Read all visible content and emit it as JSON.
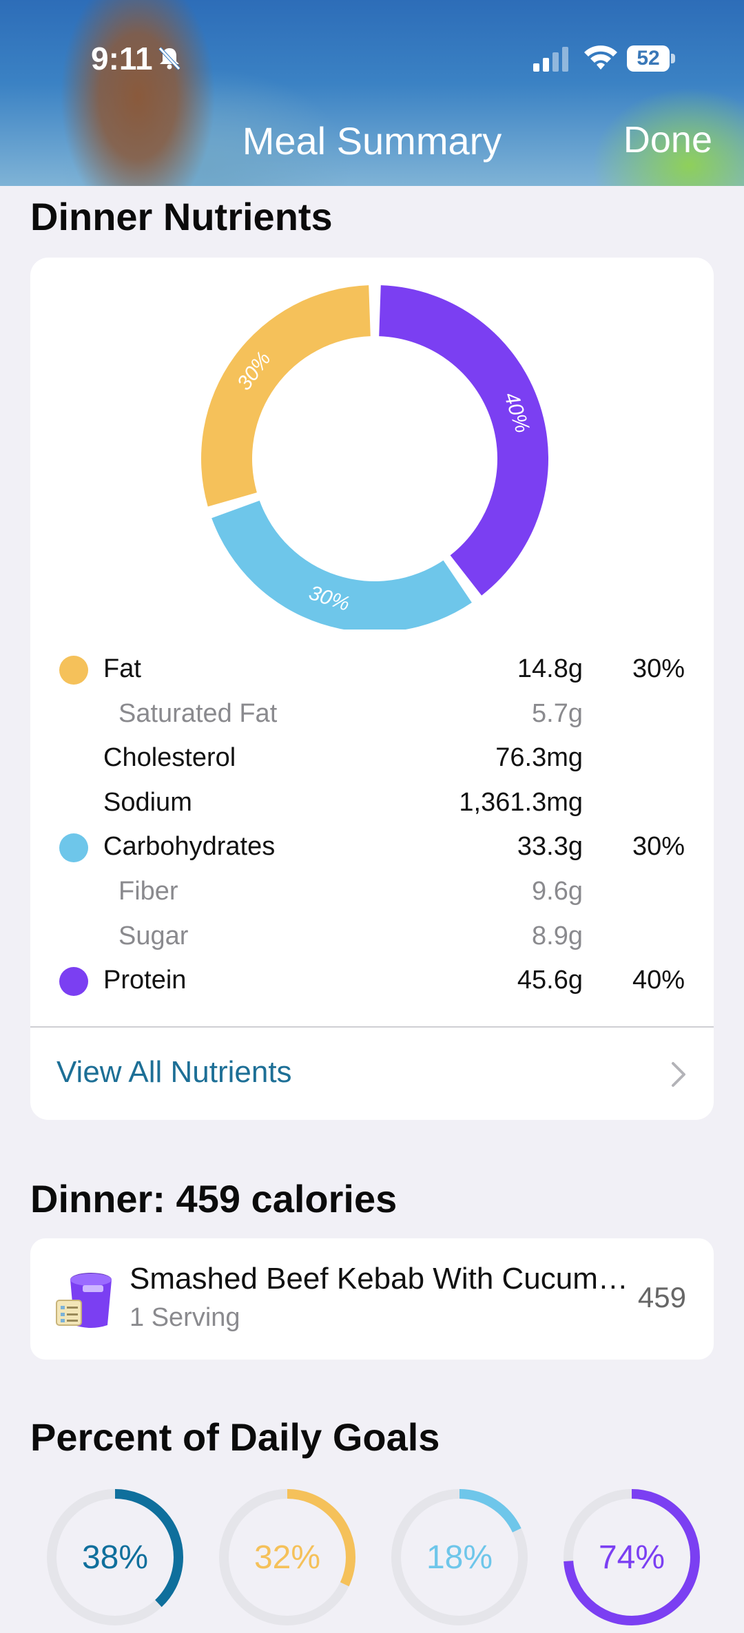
{
  "status_bar": {
    "time": "9:11",
    "battery": "52"
  },
  "nav": {
    "title": "Meal Summary",
    "done": "Done"
  },
  "nutrients_section": {
    "title": "Dinner Nutrients",
    "donut": [
      {
        "name": "Fat",
        "percent_label": "30%",
        "value": 30,
        "color": "#f5c15a"
      },
      {
        "name": "Carbohydrates",
        "percent_label": "30%",
        "value": 30,
        "color": "#6ec6ea"
      },
      {
        "name": "Protein",
        "percent_label": "40%",
        "value": 40,
        "color": "#7b3ff2"
      }
    ],
    "rows": [
      {
        "name": "Fat",
        "amount": "14.8g",
        "percent": "30%",
        "color": "#f5c15a",
        "sub": false
      },
      {
        "name": "Saturated Fat",
        "amount": "5.7g",
        "percent": "",
        "color": "",
        "sub": true
      },
      {
        "name": "Cholesterol",
        "amount": "76.3mg",
        "percent": "",
        "color": "",
        "sub": false
      },
      {
        "name": "Sodium",
        "amount": "1,361.3mg",
        "percent": "",
        "color": "",
        "sub": false
      },
      {
        "name": "Carbohydrates",
        "amount": "33.3g",
        "percent": "30%",
        "color": "#6ec6ea",
        "sub": false
      },
      {
        "name": "Fiber",
        "amount": "9.6g",
        "percent": "",
        "color": "",
        "sub": true
      },
      {
        "name": "Sugar",
        "amount": "8.9g",
        "percent": "",
        "color": "",
        "sub": true
      },
      {
        "name": "Protein",
        "amount": "45.6g",
        "percent": "40%",
        "color": "#7b3ff2",
        "sub": false
      }
    ],
    "view_all": "View All Nutrients"
  },
  "meal_section": {
    "title": "Dinner: 459 calories",
    "items": [
      {
        "name": "Smashed Beef Kebab With Cucum…",
        "serving": "1 Serving",
        "calories": "459"
      }
    ]
  },
  "goals_section": {
    "title": "Percent of Daily Goals",
    "goals": [
      {
        "label": "38%",
        "value": 0.38,
        "color": "#0f6f9c"
      },
      {
        "label": "32%",
        "value": 0.32,
        "color": "#f5c15a"
      },
      {
        "label": "18%",
        "value": 0.18,
        "color": "#6ec6ea"
      },
      {
        "label": "74%",
        "value": 0.74,
        "color": "#7b3ff2"
      }
    ]
  },
  "colors": {
    "accent_link": "#1d6f96",
    "background": "#f1f0f6"
  }
}
